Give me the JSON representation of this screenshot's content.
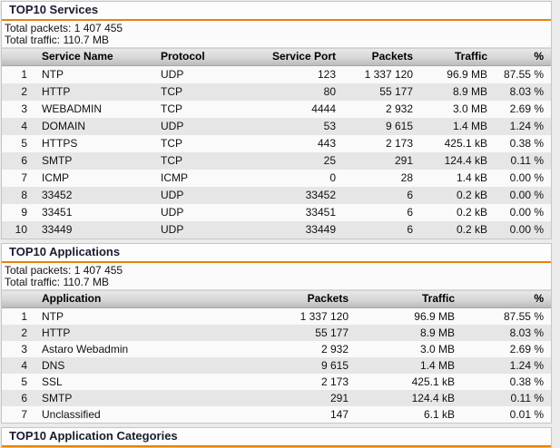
{
  "page": {
    "background": "#ebebeb",
    "accent_color": "#e8820e"
  },
  "sections": [
    {
      "title": "TOP10 Services",
      "totals": {
        "packets": "Total packets: 1 407 455",
        "traffic": "Total traffic: 110.7 MB"
      },
      "columns": [
        "",
        "Service Name",
        "Protocol",
        "Service Port",
        "Packets",
        "Traffic",
        "%"
      ],
      "rows": [
        [
          "1",
          "NTP",
          "UDP",
          "123",
          "1 337 120",
          "96.9 MB",
          "87.55 %"
        ],
        [
          "2",
          "HTTP",
          "TCP",
          "80",
          "55 177",
          "8.9 MB",
          "8.03 %"
        ],
        [
          "3",
          "WEBADMIN",
          "TCP",
          "4444",
          "2 932",
          "3.0 MB",
          "2.69 %"
        ],
        [
          "4",
          "DOMAIN",
          "UDP",
          "53",
          "9 615",
          "1.4 MB",
          "1.24 %"
        ],
        [
          "5",
          "HTTPS",
          "TCP",
          "443",
          "2 173",
          "425.1 kB",
          "0.38 %"
        ],
        [
          "6",
          "SMTP",
          "TCP",
          "25",
          "291",
          "124.4 kB",
          "0.11 %"
        ],
        [
          "7",
          "ICMP",
          "ICMP",
          "0",
          "28",
          "1.4 kB",
          "0.00 %"
        ],
        [
          "8",
          "33452",
          "UDP",
          "33452",
          "6",
          "0.2 kB",
          "0.00 %"
        ],
        [
          "9",
          "33451",
          "UDP",
          "33451",
          "6",
          "0.2 kB",
          "0.00 %"
        ],
        [
          "10",
          "33449",
          "UDP",
          "33449",
          "6",
          "0.2 kB",
          "0.00 %"
        ]
      ]
    },
    {
      "title": "TOP10 Applications",
      "totals": {
        "packets": "Total packets: 1 407 455",
        "traffic": "Total traffic: 110.7 MB"
      },
      "columns": [
        "",
        "Application",
        "Packets",
        "Traffic",
        "%"
      ],
      "rows": [
        [
          "1",
          "NTP",
          "1 337 120",
          "96.9 MB",
          "87.55 %"
        ],
        [
          "2",
          "HTTP",
          "55 177",
          "8.9 MB",
          "8.03 %"
        ],
        [
          "3",
          "Astaro Webadmin",
          "2 932",
          "3.0 MB",
          "2.69 %"
        ],
        [
          "4",
          "DNS",
          "9 615",
          "1.4 MB",
          "1.24 %"
        ],
        [
          "5",
          "SSL",
          "2 173",
          "425.1 kB",
          "0.38 %"
        ],
        [
          "6",
          "SMTP",
          "291",
          "124.4 kB",
          "0.11 %"
        ],
        [
          "7",
          "Unclassified",
          "147",
          "6.1 kB",
          "0.01 %"
        ]
      ]
    },
    {
      "title": "TOP10 Application Categories"
    }
  ]
}
